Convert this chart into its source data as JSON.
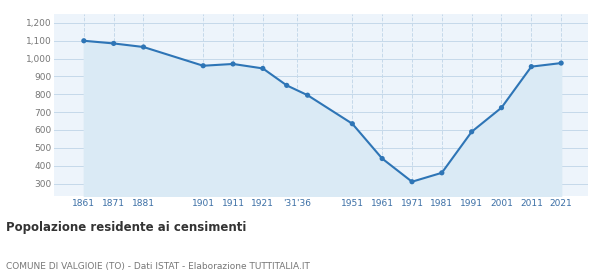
{
  "years": [
    1861,
    1871,
    1881,
    1901,
    1911,
    1921,
    1931,
    1936,
    1951,
    1961,
    1971,
    1981,
    1991,
    2001,
    2011,
    2021
  ],
  "population": [
    1100,
    1085,
    1065,
    960,
    970,
    945,
    850,
    795,
    635,
    440,
    310,
    360,
    590,
    725,
    955,
    975
  ],
  "tick_years": [
    1861,
    1871,
    1881,
    1901,
    1911,
    1921,
    1933,
    1951,
    1961,
    1971,
    1981,
    1991,
    2001,
    2011,
    2021
  ],
  "tick_labels": [
    "1861",
    "1871",
    "1881",
    "1901",
    "1911",
    "1921",
    "'31'36",
    "1951",
    "1961",
    "1971",
    "1981",
    "1991",
    "2001",
    "2011",
    "2021"
  ],
  "line_color": "#2e75b6",
  "fill_color": "#daeaf5",
  "marker_color": "#2e75b6",
  "bg_color": "#edf4fb",
  "grid_color": "#c5d9ea",
  "yticks": [
    300,
    400,
    500,
    600,
    700,
    800,
    900,
    1000,
    1100,
    1200
  ],
  "ylim": [
    230,
    1250
  ],
  "xlim": [
    1851,
    2030
  ],
  "title": "Popolazione residente ai censimenti",
  "subtitle": "COMUNE DI VALGIOIE (TO) - Dati ISTAT - Elaborazione TUTTITALIA.IT"
}
